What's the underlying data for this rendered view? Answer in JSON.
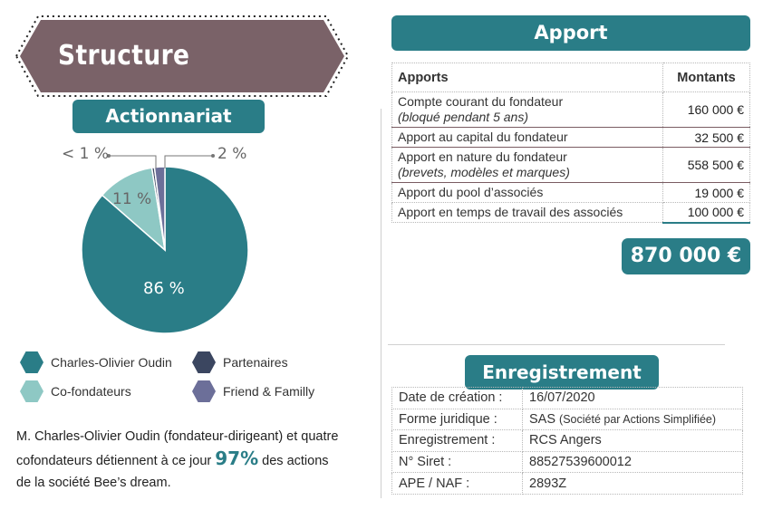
{
  "structure": {
    "title": "Structure"
  },
  "actionnariat": {
    "title": "Actionnariat",
    "chart_data": {
      "type": "pie",
      "slices": [
        {
          "label": "Charles-Olivier Oudin",
          "value": 86,
          "display": "86 %",
          "color": "#2a7d87"
        },
        {
          "label": "Co-fondateurs",
          "value": 11,
          "display": "11 %",
          "color": "#8ec8c4"
        },
        {
          "label": "Partenaires",
          "value": 0.5,
          "display": "< 1 %",
          "color": "#3b4660"
        },
        {
          "label": "Friend & Familly",
          "value": 2,
          "display": "2 %",
          "color": "#6c6f99"
        }
      ],
      "legend_placement": "bottom"
    }
  },
  "summary": {
    "text_before": "M. Charles-Olivier Oudin (fondateur-dirigeant) et quatre cofondateurs détiennent à ce jour ",
    "highlight": "97%",
    "text_after": " des actions de la société Bee’s dream."
  },
  "apport": {
    "title": "Apport",
    "headers": {
      "label": "Apports",
      "amount": "Montants"
    },
    "rows": [
      {
        "label": "Compte courant du fondateur",
        "sub": "(bloqué pendant 5 ans)",
        "amount": "160 000 €"
      },
      {
        "label": "Apport au capital du fondateur",
        "sub": "",
        "amount": "32 500 €"
      },
      {
        "label": "Apport en nature du fondateur",
        "sub": "(brevets, modèles et marques)",
        "amount": "558 500 €"
      },
      {
        "label": "Apport du pool d’associés",
        "sub": "",
        "amount": "19 000 €"
      },
      {
        "label": "Apport en temps de travail des associés",
        "sub": "",
        "amount": "100 000 €"
      }
    ],
    "total": "870 000 €"
  },
  "enregistrement": {
    "title": "Enregistrement",
    "rows": [
      {
        "key": "Date de création :",
        "value": "16/07/2020",
        "note": ""
      },
      {
        "key": "Forme juridique :",
        "value": "SAS ",
        "note": "(Société par Actions Simplifiée)"
      },
      {
        "key": "Enregistrement :",
        "value": "RCS Angers",
        "note": ""
      },
      {
        "key": "N° Siret :",
        "value": "88527539600012",
        "note": ""
      },
      {
        "key": "APE / NAF :",
        "value": "2893Z",
        "note": ""
      }
    ]
  }
}
